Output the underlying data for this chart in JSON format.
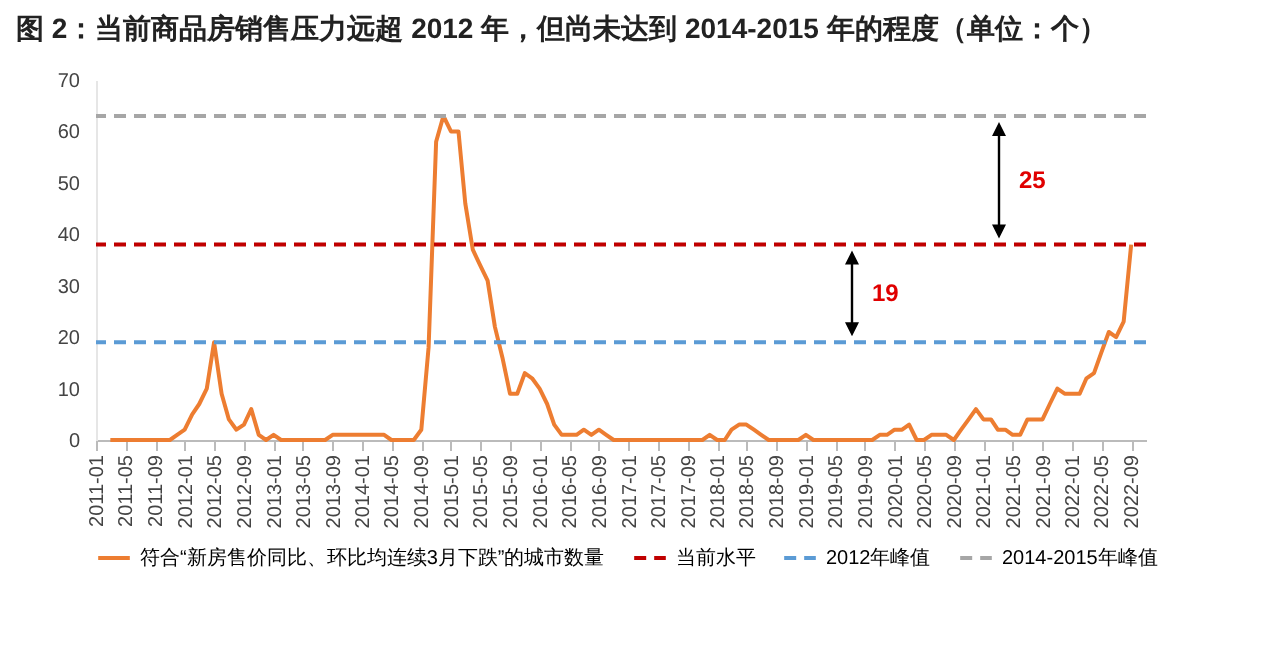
{
  "chart_data": {
    "type": "line",
    "title": "图 2：当前商品房销售压力远超 2012 年，但尚未达到 2014-2015 年的程度（单位：个）",
    "series": [
      {
        "name": "符合“新房售价同比、环比均连续3月下跌”的城市数量",
        "color": "#ed7d31",
        "x": [
          "2011-03",
          "2011-11",
          "2011-12",
          "2012-01",
          "2012-02",
          "2012-03",
          "2012-04",
          "2012-05",
          "2012-06",
          "2012-07",
          "2012-08",
          "2012-09",
          "2012-10",
          "2012-11",
          "2012-12",
          "2013-01",
          "2013-02",
          "2013-08",
          "2013-09",
          "2014-04",
          "2014-05",
          "2014-08",
          "2014-09",
          "2014-10",
          "2014-11",
          "2014-12",
          "2015-01",
          "2015-02",
          "2015-03",
          "2015-04",
          "2015-05",
          "2015-06",
          "2015-07",
          "2015-08",
          "2015-09",
          "2015-10",
          "2015-11",
          "2015-12",
          "2016-01",
          "2016-02",
          "2016-03",
          "2016-04",
          "2016-06",
          "2016-07",
          "2016-08",
          "2016-09",
          "2016-10",
          "2016-11",
          "2017-11",
          "2017-12",
          "2018-01",
          "2018-02",
          "2018-03",
          "2018-04",
          "2018-05",
          "2018-06",
          "2018-07",
          "2018-08",
          "2018-12",
          "2019-01",
          "2019-02",
          "2019-10",
          "2019-11",
          "2019-12",
          "2020-01",
          "2020-02",
          "2020-03",
          "2020-04",
          "2020-05",
          "2020-06",
          "2020-08",
          "2020-09",
          "2020-10",
          "2020-11",
          "2020-12",
          "2021-01",
          "2021-02",
          "2021-03",
          "2021-04",
          "2021-05",
          "2021-06",
          "2021-07",
          "2021-09",
          "2021-10",
          "2021-11",
          "2021-12",
          "2022-01",
          "2022-02",
          "2022-03",
          "2022-04",
          "2022-05",
          "2022-06",
          "2022-07",
          "2022-08",
          "2022-09"
        ],
        "values": [
          0,
          0,
          1,
          2,
          5,
          7,
          10,
          19,
          9,
          4,
          2,
          3,
          6,
          1,
          0,
          1,
          0,
          0,
          1,
          1,
          0,
          0,
          2,
          18,
          58,
          63,
          60,
          60,
          46,
          37,
          34,
          31,
          22,
          16,
          9,
          9,
          13,
          12,
          10,
          7,
          3,
          1,
          1,
          2,
          1,
          2,
          1,
          0,
          0,
          1,
          0,
          0,
          2,
          3,
          3,
          2,
          1,
          0,
          0,
          1,
          0,
          0,
          1,
          1,
          2,
          2,
          3,
          0,
          0,
          1,
          1,
          0,
          2,
          4,
          6,
          4,
          4,
          2,
          2,
          1,
          1,
          4,
          4,
          7,
          10,
          9,
          9,
          9,
          12,
          13,
          17,
          21,
          20,
          23,
          38
        ]
      }
    ],
    "xlim": [
      "2011-01",
      "2022-11"
    ],
    "xticks": [
      {
        "value": "2011-01",
        "label": "2011-01"
      },
      {
        "value": "2011-05",
        "label": "2011-05"
      },
      {
        "value": "2011-09",
        "label": "2011-09"
      },
      {
        "value": "2012-01",
        "label": "2012-01"
      },
      {
        "value": "2012-05",
        "label": "2012-05"
      },
      {
        "value": "2012-09",
        "label": "2012-09"
      },
      {
        "value": "2013-01",
        "label": "2013-01"
      },
      {
        "value": "2013-05",
        "label": "2013-05"
      },
      {
        "value": "2013-09",
        "label": "2013-09"
      },
      {
        "value": "2014-01",
        "label": "2014-01"
      },
      {
        "value": "2014-05",
        "label": "2014-05"
      },
      {
        "value": "2014-09",
        "label": "2014-09"
      },
      {
        "value": "2015-01",
        "label": "2015-01"
      },
      {
        "value": "2015-05",
        "label": "2015-05"
      },
      {
        "value": "2015-09",
        "label": "2015-09"
      },
      {
        "value": "2016-01",
        "label": "2016-01"
      },
      {
        "value": "2016-05",
        "label": "2016-05"
      },
      {
        "value": "2016-09",
        "label": "2016-09"
      },
      {
        "value": "2017-01",
        "label": "2017-01"
      },
      {
        "value": "2017-05",
        "label": "2017-05"
      },
      {
        "value": "2017-09",
        "label": "2017-09"
      },
      {
        "value": "2018-01",
        "label": "2018-01"
      },
      {
        "value": "2018-05",
        "label": "2018-05"
      },
      {
        "value": "2018-09",
        "label": "2018-09"
      },
      {
        "value": "2019-01",
        "label": "2019-01"
      },
      {
        "value": "2019-05",
        "label": "2019-05"
      },
      {
        "value": "2019-09",
        "label": "2019-09"
      },
      {
        "value": "2020-01",
        "label": "2020-01"
      },
      {
        "value": "2020-05",
        "label": "2020-05"
      },
      {
        "value": "2020-09",
        "label": "2020-09"
      },
      {
        "value": "2021-01",
        "label": "2021-01"
      },
      {
        "value": "2021-05",
        "label": "2021-05"
      },
      {
        "value": "2021-09",
        "label": "2021-09"
      },
      {
        "value": "2022-01",
        "label": "2022-01"
      },
      {
        "value": "2022-05",
        "label": "2022-05"
      },
      {
        "value": "2022-09",
        "label": "2022-09"
      }
    ],
    "ylim": [
      0,
      70
    ],
    "yticks": [
      0,
      10,
      20,
      30,
      40,
      50,
      60,
      70
    ],
    "ref_lines": [
      {
        "axis": "y",
        "value": 38,
        "label": "当前水平",
        "color": "#c00000",
        "line_style": "dashed"
      },
      {
        "axis": "y",
        "value": 19,
        "label": "2012年峰值",
        "color": "#5b9bd5",
        "line_style": "dashed"
      },
      {
        "axis": "y",
        "value": 63,
        "label": "2014-2015年峰值",
        "color": "#a6a6a6",
        "line_style": "dashed"
      }
    ],
    "annotations": [
      "25",
      "19"
    ],
    "legend": "bottom",
    "grid": false,
    "marker": "none",
    "line_style": "solid"
  }
}
